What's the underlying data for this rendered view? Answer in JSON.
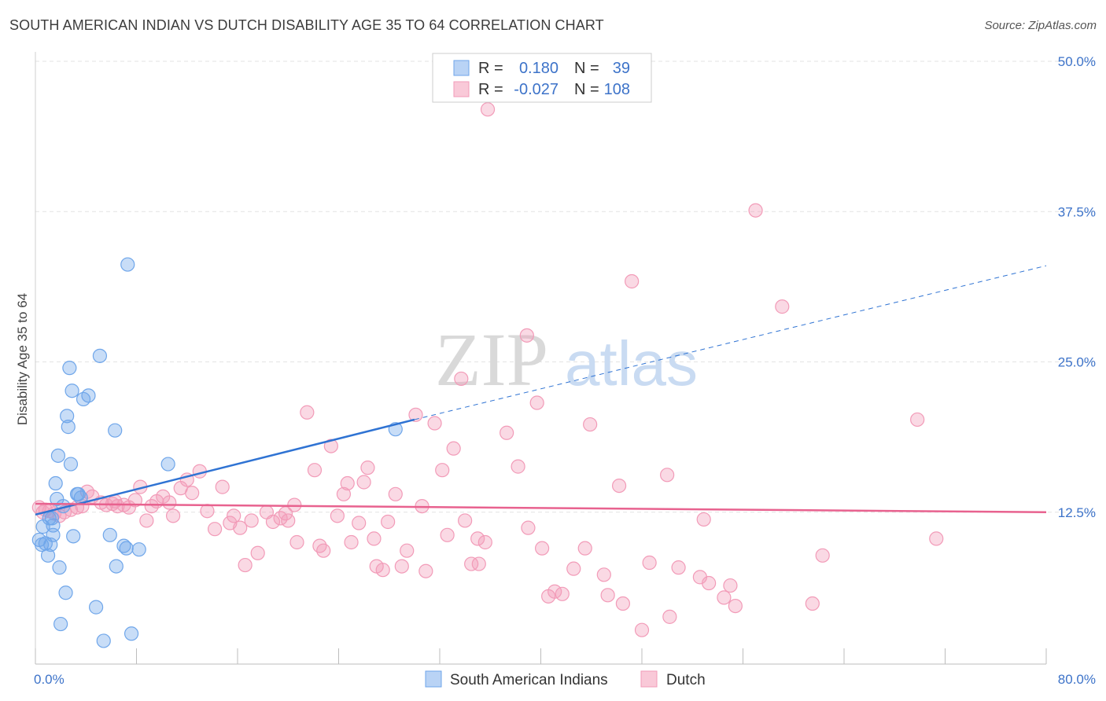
{
  "title": "SOUTH AMERICAN INDIAN VS DUTCH DISABILITY AGE 35 TO 64 CORRELATION CHART",
  "source": "Source: ZipAtlas.com",
  "watermark": {
    "zip": "ZIP",
    "atlas": "atlas"
  },
  "legend": {
    "rows": [
      {
        "r_label": "R =",
        "r_value": "0.180",
        "n_label": "N =",
        "n_value": "39"
      },
      {
        "r_label": "R =",
        "r_value": "-0.027",
        "n_label": "N =",
        "n_value": "108"
      }
    ]
  },
  "chart_data": {
    "type": "scatter",
    "title": "SOUTH AMERICAN INDIAN VS DUTCH DISABILITY AGE 35 TO 64 CORRELATION CHART",
    "xlabel": "",
    "ylabel": "Disability Age 35 to 64",
    "xlim": [
      0,
      80
    ],
    "ylim": [
      0,
      50
    ],
    "x_tick_labels": [
      "0.0%",
      "80.0%"
    ],
    "y_ticks": [
      12.5,
      25.0,
      37.5,
      50.0
    ],
    "y_tick_labels": [
      "12.5%",
      "25.0%",
      "37.5%",
      "50.0%"
    ],
    "grid": "horizontal dashed",
    "legend_position": "top-center and bottom",
    "colors": {
      "south_american_indians": "#6fa6ea",
      "dutch": "#f29bb8",
      "blue_line": "#2f73d3",
      "pink_line": "#e8628f"
    },
    "series": [
      {
        "name": "South American Indians",
        "r": 0.18,
        "n": 39,
        "trend": {
          "x": [
            0,
            30
          ],
          "y": [
            12.3,
            20.2
          ],
          "extended_to": [
            80,
            33.0
          ]
        },
        "points": [
          [
            0.3,
            10.2
          ],
          [
            0.5,
            9.8
          ],
          [
            0.6,
            11.3
          ],
          [
            0.8,
            9.9
          ],
          [
            1.0,
            8.9
          ],
          [
            1.1,
            12.0
          ],
          [
            1.2,
            9.8
          ],
          [
            1.3,
            12.0
          ],
          [
            1.4,
            10.6
          ],
          [
            1.4,
            11.4
          ],
          [
            1.6,
            14.9
          ],
          [
            1.7,
            13.6
          ],
          [
            1.8,
            17.2
          ],
          [
            1.9,
            7.9
          ],
          [
            2.0,
            3.2
          ],
          [
            2.2,
            13.0
          ],
          [
            2.4,
            5.8
          ],
          [
            2.5,
            20.5
          ],
          [
            2.6,
            19.6
          ],
          [
            2.7,
            24.5
          ],
          [
            2.8,
            16.5
          ],
          [
            2.9,
            22.6
          ],
          [
            3.0,
            10.5
          ],
          [
            3.3,
            14.0
          ],
          [
            3.4,
            14.0
          ],
          [
            3.6,
            13.7
          ],
          [
            3.8,
            21.9
          ],
          [
            4.2,
            22.2
          ],
          [
            4.8,
            4.6
          ],
          [
            5.1,
            25.5
          ],
          [
            5.4,
            1.8
          ],
          [
            5.9,
            10.6
          ],
          [
            6.4,
            8.0
          ],
          [
            6.3,
            19.3
          ],
          [
            7.0,
            9.7
          ],
          [
            7.2,
            9.5
          ],
          [
            7.6,
            2.4
          ],
          [
            7.3,
            33.1
          ],
          [
            8.2,
            9.4
          ],
          [
            10.5,
            16.5
          ],
          [
            28.5,
            19.4
          ]
        ]
      },
      {
        "name": "Dutch",
        "r": -0.027,
        "n": 108,
        "trend": {
          "x": [
            0,
            80
          ],
          "y": [
            13.2,
            12.5
          ]
        },
        "points": [
          [
            0.3,
            12.9
          ],
          [
            0.6,
            12.5
          ],
          [
            0.8,
            12.7
          ],
          [
            1.1,
            12.6
          ],
          [
            1.5,
            12.4
          ],
          [
            1.9,
            12.2
          ],
          [
            2.3,
            12.5
          ],
          [
            2.8,
            12.7
          ],
          [
            3.3,
            12.9
          ],
          [
            3.7,
            13.0
          ],
          [
            4.1,
            14.2
          ],
          [
            4.5,
            13.8
          ],
          [
            5.2,
            13.3
          ],
          [
            5.6,
            13.1
          ],
          [
            6.1,
            13.2
          ],
          [
            6.3,
            13.4
          ],
          [
            6.5,
            13.0
          ],
          [
            7.0,
            13.1
          ],
          [
            7.4,
            12.9
          ],
          [
            7.9,
            13.5
          ],
          [
            8.3,
            14.6
          ],
          [
            8.8,
            11.8
          ],
          [
            9.2,
            13.0
          ],
          [
            9.6,
            13.4
          ],
          [
            10.1,
            13.8
          ],
          [
            10.6,
            13.3
          ],
          [
            10.9,
            12.2
          ],
          [
            11.5,
            14.5
          ],
          [
            12.0,
            15.2
          ],
          [
            12.4,
            14.1
          ],
          [
            13.0,
            15.9
          ],
          [
            13.6,
            12.6
          ],
          [
            14.2,
            11.1
          ],
          [
            14.8,
            14.6
          ],
          [
            15.4,
            11.6
          ],
          [
            15.7,
            12.2
          ],
          [
            16.2,
            11.2
          ],
          [
            16.6,
            8.1
          ],
          [
            17.1,
            11.8
          ],
          [
            17.6,
            9.1
          ],
          [
            18.3,
            12.5
          ],
          [
            18.8,
            11.7
          ],
          [
            19.4,
            12.0
          ],
          [
            19.8,
            12.4
          ],
          [
            20.0,
            11.8
          ],
          [
            20.5,
            13.1
          ],
          [
            20.7,
            10.0
          ],
          [
            21.5,
            20.8
          ],
          [
            22.1,
            16.0
          ],
          [
            22.5,
            9.7
          ],
          [
            22.8,
            9.3
          ],
          [
            23.4,
            18.0
          ],
          [
            23.9,
            12.2
          ],
          [
            24.4,
            14.0
          ],
          [
            24.7,
            14.9
          ],
          [
            25.0,
            10.0
          ],
          [
            25.6,
            11.6
          ],
          [
            26.0,
            15.0
          ],
          [
            26.3,
            16.2
          ],
          [
            26.8,
            10.3
          ],
          [
            27.0,
            8.0
          ],
          [
            27.5,
            7.7
          ],
          [
            27.9,
            11.7
          ],
          [
            28.5,
            14.0
          ],
          [
            29.0,
            8.0
          ],
          [
            29.4,
            9.3
          ],
          [
            30.1,
            20.6
          ],
          [
            30.6,
            13.0
          ],
          [
            30.9,
            7.6
          ],
          [
            31.6,
            19.9
          ],
          [
            32.2,
            16.0
          ],
          [
            32.6,
            10.6
          ],
          [
            33.1,
            17.8
          ],
          [
            33.7,
            23.6
          ],
          [
            34.0,
            11.8
          ],
          [
            34.5,
            8.2
          ],
          [
            35.0,
            10.3
          ],
          [
            35.1,
            8.2
          ],
          [
            35.6,
            10.0
          ],
          [
            35.8,
            46.0
          ],
          [
            37.3,
            19.1
          ],
          [
            38.2,
            16.3
          ],
          [
            38.9,
            27.2
          ],
          [
            39.0,
            11.2
          ],
          [
            39.7,
            21.6
          ],
          [
            40.1,
            9.5
          ],
          [
            40.6,
            5.5
          ],
          [
            41.1,
            5.9
          ],
          [
            41.7,
            5.7
          ],
          [
            42.6,
            7.8
          ],
          [
            43.5,
            9.5
          ],
          [
            43.9,
            19.8
          ],
          [
            45.0,
            7.3
          ],
          [
            45.3,
            5.6
          ],
          [
            46.2,
            14.7
          ],
          [
            46.5,
            4.9
          ],
          [
            47.2,
            31.7
          ],
          [
            48.0,
            2.7
          ],
          [
            48.6,
            8.3
          ],
          [
            50.0,
            15.6
          ],
          [
            50.2,
            3.8
          ],
          [
            50.9,
            7.9
          ],
          [
            52.6,
            7.1
          ],
          [
            52.9,
            11.9
          ],
          [
            53.3,
            6.6
          ],
          [
            54.5,
            5.4
          ],
          [
            55.0,
            6.4
          ],
          [
            55.4,
            4.7
          ],
          [
            57.0,
            37.6
          ],
          [
            59.1,
            29.6
          ],
          [
            61.5,
            4.9
          ],
          [
            62.3,
            8.9
          ],
          [
            69.8,
            20.2
          ],
          [
            71.3,
            10.3
          ]
        ]
      }
    ]
  }
}
